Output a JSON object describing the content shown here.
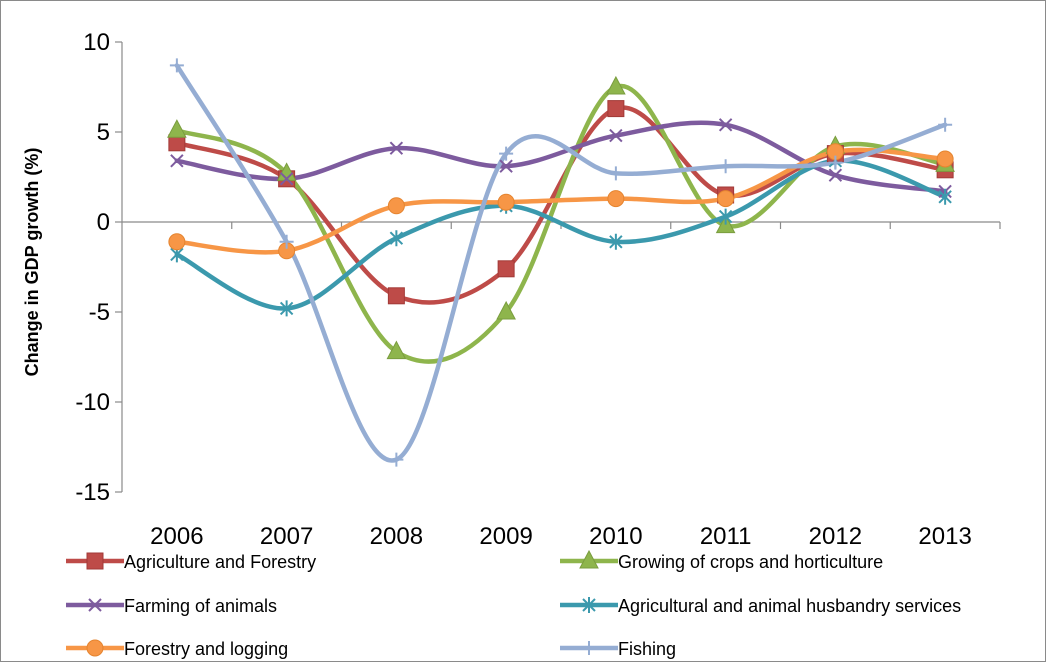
{
  "chart_data": {
    "type": "line",
    "title": "",
    "xlabel": "",
    "ylabel": "Change in GDP growth (%)",
    "ylim": [
      -15,
      10
    ],
    "yticks": [
      10,
      5,
      0,
      -5,
      -10,
      -15
    ],
    "categories": [
      "2006",
      "2007",
      "2008",
      "2009",
      "2010",
      "2011",
      "2012",
      "2013"
    ],
    "grid": false,
    "smooth": true,
    "legend_position": "bottom",
    "series": [
      {
        "name": "Agriculture and Forestry",
        "color": "#be4b48",
        "marker": "square",
        "values": [
          4.4,
          2.4,
          -4.1,
          -2.6,
          6.3,
          1.5,
          3.8,
          2.9
        ]
      },
      {
        "name": "Growing  of crops and horticulture",
        "color": "#8eb54c",
        "marker": "triangle",
        "values": [
          5.1,
          2.7,
          -7.2,
          -5.0,
          7.5,
          -0.2,
          4.2,
          3.2
        ]
      },
      {
        "name": "Farming  of animals",
        "color": "#7d5b9e",
        "marker": "x",
        "values": [
          3.4,
          2.4,
          4.1,
          3.1,
          4.8,
          5.4,
          2.6,
          1.7
        ]
      },
      {
        "name": "Agricultural and animal husbandry services",
        "color": "#3b99ad",
        "marker": "asterisk",
        "values": [
          -1.8,
          -4.8,
          -0.9,
          0.9,
          -1.1,
          0.3,
          3.4,
          1.4
        ]
      },
      {
        "name": "Forestry and logging",
        "color": "#f79646",
        "marker": "circle",
        "values": [
          -1.1,
          -1.6,
          0.9,
          1.1,
          1.3,
          1.3,
          3.9,
          3.5
        ]
      },
      {
        "name": "Fishing",
        "color": "#95add3",
        "marker": "plus",
        "values": [
          8.7,
          -1.1,
          -13.2,
          3.8,
          2.7,
          3.1,
          3.3,
          5.4
        ]
      }
    ]
  }
}
